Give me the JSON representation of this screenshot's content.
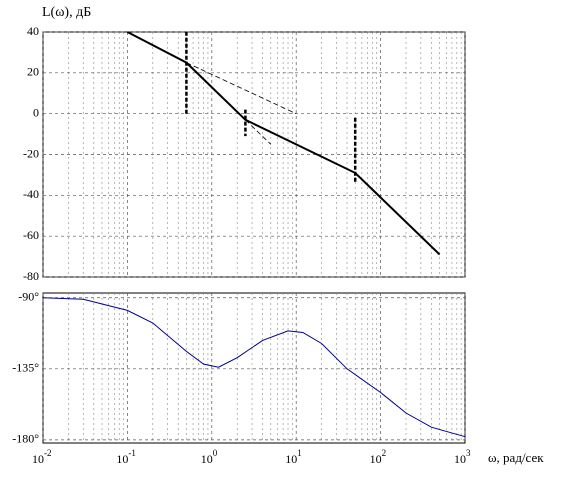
{
  "chart_data": [
    {
      "type": "line",
      "ylabel": "L(ω), дБ",
      "log_x": true,
      "grid": true,
      "xlim": [
        0.01,
        1000
      ],
      "ylim": [
        -80,
        40
      ],
      "xticks": [
        0.01,
        0.1,
        1,
        10,
        100,
        1000
      ],
      "yticks": [
        40,
        20,
        0,
        -20,
        -40,
        -60,
        -80
      ],
      "series": [
        {
          "color": "#000000",
          "style": "solid",
          "x": [
            0.1,
            0.5,
            2.5,
            50,
            500
          ],
          "values": [
            40,
            25,
            -3,
            -29,
            -69
          ]
        },
        {
          "color": "#000000",
          "style": "dashed",
          "x": [
            0.5,
            10
          ],
          "values": [
            25,
            0
          ]
        },
        {
          "color": "#000000",
          "style": "dashed",
          "x": [
            2.5,
            5
          ],
          "values": [
            -3,
            -15
          ]
        },
        {
          "color": "#000000",
          "style": "marker",
          "x": [
            0.5,
            0.5
          ],
          "values": [
            0,
            40
          ]
        },
        {
          "color": "#000000",
          "style": "marker",
          "x": [
            2.5,
            2.5
          ],
          "values": [
            2,
            -11
          ]
        },
        {
          "color": "#000000",
          "style": "marker",
          "x": [
            50,
            50
          ],
          "values": [
            -2,
            -34
          ]
        }
      ]
    },
    {
      "type": "line",
      "xlabel": "ω, рад/сек",
      "log_x": true,
      "grid": true,
      "xlim": [
        0.01,
        1000
      ],
      "ylim": [
        -182,
        -87
      ],
      "xticks": [
        {
          "value": 0.01,
          "label": "10",
          "exponent": "-2"
        },
        {
          "value": 0.1,
          "label": "10",
          "exponent": "-1"
        },
        {
          "value": 1,
          "label": "10",
          "exponent": "0"
        },
        {
          "value": 10,
          "label": "10",
          "exponent": "1"
        },
        {
          "value": 100,
          "label": "10",
          "exponent": "2"
        },
        {
          "value": 1000,
          "label": "10",
          "exponent": "3"
        }
      ],
      "yticks": [
        {
          "value": -90,
          "label": "-90°"
        },
        {
          "value": -135,
          "label": "-135°"
        },
        {
          "value": -180,
          "label": "-180°"
        }
      ],
      "series": [
        {
          "color": "#00008b",
          "style": "thin",
          "x": [
            0.01,
            0.03,
            0.1,
            0.2,
            0.5,
            0.8,
            1.2,
            2,
            4,
            8,
            12,
            20,
            40,
            100,
            200,
            400,
            1000
          ],
          "values": [
            -90,
            -91,
            -98,
            -106,
            -124,
            -132,
            -134,
            -128,
            -117,
            -111,
            -112,
            -119,
            -135,
            -150,
            -163,
            -172,
            -178
          ]
        }
      ]
    }
  ]
}
